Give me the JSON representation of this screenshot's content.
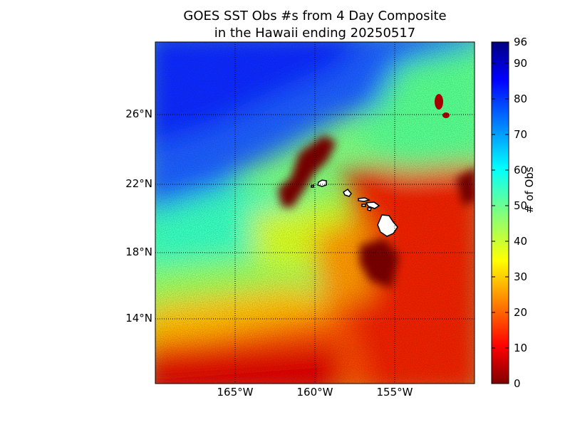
{
  "title": {
    "line1": "GOES SST Obs #s from 4 Day Composite",
    "line2": "in the Hawaii ending 20250517"
  },
  "map": {
    "lat_labels": [
      "26°N",
      "22°N",
      "18°N",
      "14°N"
    ],
    "lon_labels": [
      "165°W",
      "160°W",
      "155°W"
    ],
    "latitudes": [
      26,
      22,
      18,
      14
    ],
    "longitudes": [
      -165,
      -160,
      -155
    ],
    "extent": {
      "lon": [
        -170,
        -150
      ],
      "lat": [
        10.2,
        30.2
      ]
    },
    "gridlines": true
  },
  "colorbar": {
    "label": "# of Obs",
    "range": [
      0,
      96
    ],
    "ticks": [
      "96",
      "90",
      "80",
      "70",
      "60",
      "50",
      "40",
      "30",
      "20",
      "10",
      "0"
    ],
    "tick_values": [
      96,
      90,
      80,
      70,
      60,
      50,
      40,
      30,
      20,
      10,
      0
    ],
    "colormap": "jet"
  },
  "colors": {
    "land": "#ffffff",
    "coastline": "#000000",
    "dark_red": "#800000",
    "red": "#ff0000",
    "yellow": "#ffff00",
    "cyan": "#00ffff",
    "blue": "#0000ff",
    "navy": "#000080"
  }
}
